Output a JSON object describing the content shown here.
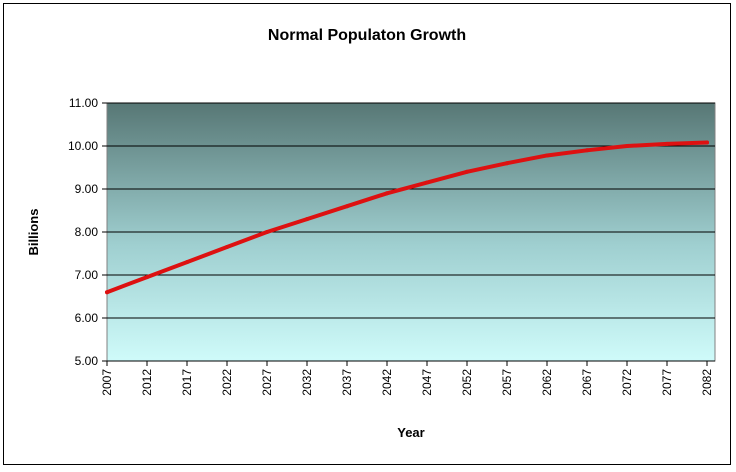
{
  "chart_data": {
    "type": "line",
    "title": "Normal Populaton Growth",
    "xlabel": "Year",
    "ylabel": "Billions",
    "ylim": [
      5,
      11
    ],
    "yticks": [
      "5.00",
      "6.00",
      "7.00",
      "8.00",
      "9.00",
      "10.00",
      "11.00"
    ],
    "xticks": [
      "2007",
      "2012",
      "2017",
      "2022",
      "2027",
      "2032",
      "2037",
      "2042",
      "2047",
      "2052",
      "2057",
      "2062",
      "2067",
      "2072",
      "2077",
      "2082"
    ],
    "grid": true,
    "legend": "none",
    "series": [
      {
        "color": "#dd1111",
        "x": [
          2007,
          2012,
          2017,
          2022,
          2027,
          2032,
          2037,
          2042,
          2047,
          2052,
          2057,
          2062,
          2067,
          2072,
          2077,
          2082
        ],
        "values": [
          6.6,
          6.95,
          7.3,
          7.65,
          8.0,
          8.3,
          8.6,
          8.9,
          9.15,
          9.4,
          9.6,
          9.78,
          9.9,
          10.0,
          10.05,
          10.08
        ]
      }
    ]
  }
}
